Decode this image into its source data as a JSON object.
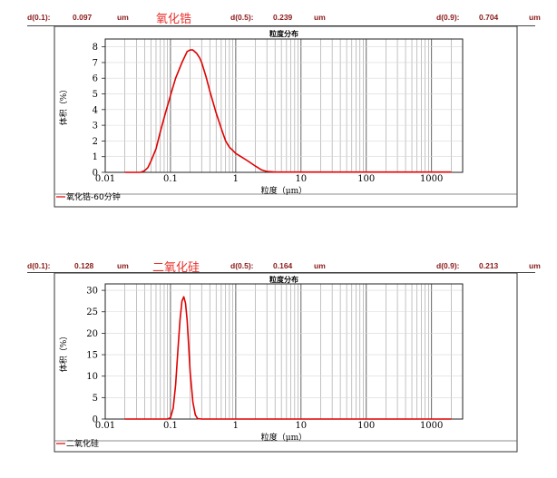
{
  "panels": [
    {
      "stats": {
        "d01_label": "d(0.1):",
        "d01_value": "0.097",
        "d01_unit": "um",
        "material": "氧化锆",
        "d05_label": "d(0.5):",
        "d05_value": "0.239",
        "d05_unit": "um",
        "d09_label": "d(0.9):",
        "d09_value": "0.704",
        "d09_unit": "um"
      },
      "legend": "氧化锆-60分钟"
    },
    {
      "stats": {
        "d01_label": "d(0.1):",
        "d01_value": "0.128",
        "d01_unit": "um",
        "material": "二氧化硅",
        "d05_label": "d(0.5):",
        "d05_value": "0.164",
        "d05_unit": "um",
        "d09_label": "d(0.9):",
        "d09_value": "0.213",
        "d09_unit": "um"
      },
      "legend": "二氧化硅"
    }
  ],
  "chart_data": [
    {
      "type": "line",
      "title": "粒度分布",
      "xlabel": "粒度（μm）",
      "ylabel": "体积（%）",
      "xscale": "log",
      "xlim": [
        0.01,
        3000
      ],
      "ylim": [
        0,
        8.5
      ],
      "xticks": [
        0.01,
        0.1,
        1,
        10,
        100,
        1000
      ],
      "xtick_labels": [
        "0.01",
        "0.1",
        "1",
        "10",
        "100",
        "1000"
      ],
      "yticks": [
        0,
        1,
        2,
        3,
        4,
        5,
        6,
        7,
        8
      ],
      "ytick_labels": [
        "0",
        "1",
        "2",
        "3",
        "4",
        "5",
        "6",
        "7",
        "8"
      ],
      "grid": true,
      "color": "#e00000",
      "series": [
        {
          "name": "氧化锆-60分钟",
          "x": [
            0.02,
            0.035,
            0.04,
            0.045,
            0.05,
            0.06,
            0.07,
            0.08,
            0.1,
            0.12,
            0.15,
            0.18,
            0.2,
            0.22,
            0.25,
            0.28,
            0.3,
            0.35,
            0.4,
            0.5,
            0.6,
            0.7,
            0.8,
            0.9,
            1.0,
            1.2,
            1.5,
            2.0,
            2.5,
            3.0,
            4.0,
            10,
            100,
            2000
          ],
          "y": [
            0,
            0,
            0.1,
            0.3,
            0.7,
            1.5,
            2.6,
            3.5,
            4.9,
            6.0,
            7.0,
            7.7,
            7.8,
            7.8,
            7.6,
            7.3,
            7.0,
            6.1,
            5.2,
            3.8,
            2.8,
            2.0,
            1.6,
            1.4,
            1.2,
            1.0,
            0.75,
            0.4,
            0.15,
            0.05,
            0.02,
            0.02,
            0.02,
            0.02
          ]
        }
      ]
    },
    {
      "type": "line",
      "title": "粒度分布",
      "xlabel": "粒度（μm）",
      "ylabel": "体积（%）",
      "xscale": "log",
      "xlim": [
        0.01,
        3000
      ],
      "ylim": [
        0,
        31.5
      ],
      "xticks": [
        0.01,
        0.1,
        1,
        10,
        100,
        1000
      ],
      "xtick_labels": [
        "0.01",
        "0.1",
        "1",
        "10",
        "100",
        "1000"
      ],
      "yticks": [
        0,
        5,
        10,
        15,
        20,
        25,
        30
      ],
      "ytick_labels": [
        "0",
        "5",
        "10",
        "15",
        "20",
        "25",
        "30"
      ],
      "grid": true,
      "color": "#e00000",
      "series": [
        {
          "name": "二氧化硅",
          "x": [
            0.02,
            0.09,
            0.1,
            0.11,
            0.12,
            0.13,
            0.14,
            0.15,
            0.16,
            0.17,
            0.18,
            0.19,
            0.2,
            0.22,
            0.24,
            0.26,
            0.3,
            1,
            10,
            100,
            2000
          ],
          "y": [
            0,
            0,
            0.3,
            2.5,
            8.0,
            16.0,
            23.0,
            27.5,
            28.5,
            27.0,
            23.0,
            17.0,
            11.0,
            4.0,
            1.0,
            0.1,
            0,
            0,
            0,
            0,
            0
          ]
        }
      ]
    }
  ]
}
